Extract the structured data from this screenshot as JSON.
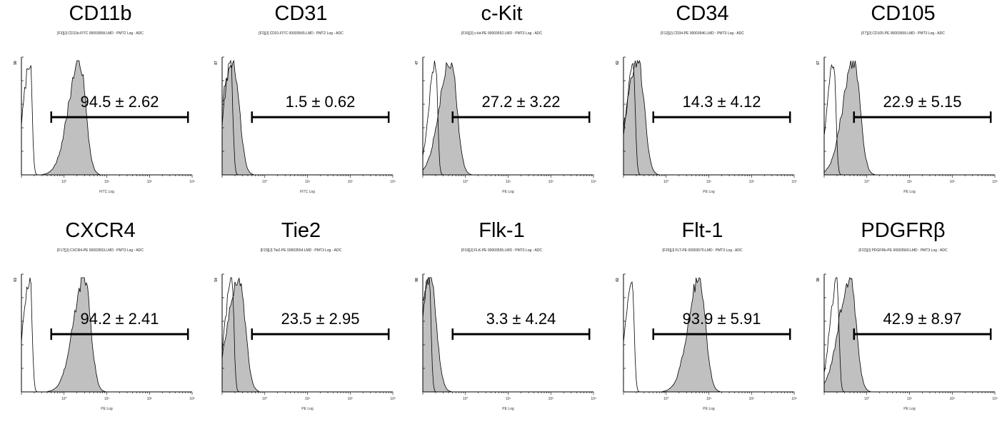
{
  "chart_data": [
    {
      "type": "histogram",
      "title": "CD11b",
      "file_label": "[F3][J] CD11b-FITC 00003558.LMD : PMT2 Log - ADC",
      "y_max": "56",
      "x_label": "FITC Log",
      "gate_value": "94.5 ± 2.62",
      "x_ticks": [
        "10°",
        "10¹",
        "10²",
        "10³"
      ],
      "x_range": [
        0.1,
        1000
      ],
      "gate_range": [
        0.5,
        800
      ],
      "control_peak": 0.16,
      "stained_peak": 2.3
    },
    {
      "type": "histogram",
      "title": "CD31",
      "file_label": "[F2][J] CD31-FITC 00003565.LMD : PMT2 Log - ADC",
      "y_max": "87",
      "x_label": "FITC Log",
      "gate_value": "1.5 ± 0.62",
      "x_ticks": [
        "10°",
        "10¹",
        "10²",
        "10³"
      ],
      "x_range": [
        0.1,
        1000
      ],
      "gate_range": [
        0.5,
        800
      ],
      "control_peak": 0.16,
      "stained_peak": 0.18
    },
    {
      "type": "histogram",
      "title": "c-Kit",
      "file_label": "[F16][J] c-kit-PE 00003552.LMD : PMT3 Log - ADC",
      "y_max": "47",
      "x_label": "PE Log",
      "gate_value": "27.2 ± 3.22",
      "x_ticks": [
        "10°",
        "10¹",
        "10²",
        "10³"
      ],
      "x_range": [
        0.1,
        1000
      ],
      "gate_range": [
        0.5,
        800
      ],
      "control_peak": 0.2,
      "stained_peak": 0.45
    },
    {
      "type": "histogram",
      "title": "CD34",
      "file_label": "[F12][J] CD34-PE 00003546.LMD : PMT3 Log - ADC",
      "y_max": "62",
      "x_label": "PE Log",
      "gate_value": "14.3 ± 4.12",
      "x_ticks": [
        "10°",
        "10¹",
        "10²",
        "10³"
      ],
      "x_range": [
        0.1,
        1000
      ],
      "gate_range": [
        0.5,
        800
      ],
      "control_peak": 0.17,
      "stained_peak": 0.22
    },
    {
      "type": "histogram",
      "title": "CD105",
      "file_label": "[F7][J] CD105-PE 00003559.LMD : PMT3 Log - ADC",
      "y_max": "67",
      "x_label": "PE Log",
      "gate_value": "22.9 ± 5.15",
      "x_ticks": [
        "10°",
        "10¹",
        "10²",
        "10³"
      ],
      "x_range": [
        0.1,
        1000
      ],
      "gate_range": [
        0.5,
        800
      ],
      "control_peak": 0.17,
      "stained_peak": 0.5
    },
    {
      "type": "histogram",
      "title": "CXCR4",
      "file_label": "[F17][J] CXCR4-PE 00003553.LMD : PMT3 Log - ADC",
      "y_max": "63",
      "x_label": "PE Log",
      "gate_value": "94.2 ± 2.41",
      "x_ticks": [
        "10°",
        "10¹",
        "10²",
        "10³"
      ],
      "x_range": [
        0.1,
        1000
      ],
      "gate_range": [
        0.5,
        800
      ],
      "control_peak": 0.16,
      "stained_peak": 3.0
    },
    {
      "type": "histogram",
      "title": "Tie2",
      "file_label": "[F23][J] Tie2-PE 00003554.LMD : PMT3 Log - ADC",
      "y_max": "54",
      "x_label": "PE Log",
      "gate_value": "23.5 ± 2.95",
      "x_ticks": [
        "10°",
        "10¹",
        "10²",
        "10³"
      ],
      "x_range": [
        0.1,
        1000
      ],
      "gate_range": [
        0.5,
        800
      ],
      "control_peak": 0.17,
      "stained_peak": 0.25
    },
    {
      "type": "histogram",
      "title": "Flk-1",
      "file_label": "[F19][J] FLK-PE 00003555.LMD : PMT3 Log - ADC",
      "y_max": "98",
      "x_label": "PE Log",
      "gate_value": "3.3 ± 4.24",
      "x_ticks": [
        "10°",
        "10¹",
        "10²",
        "10³"
      ],
      "x_range": [
        0.1,
        1000
      ],
      "gate_range": [
        0.5,
        800
      ],
      "control_peak": 0.14,
      "stained_peak": 0.15
    },
    {
      "type": "histogram",
      "title": "Flt-1",
      "file_label": "[F20][J] FLT-PE 00003570.LMD : PMT3 Log - ADC",
      "y_max": "62",
      "x_label": "PE Log",
      "gate_value": "93.9 ± 5.91",
      "x_ticks": [
        "10°",
        "10¹",
        "10²",
        "10³"
      ],
      "x_range": [
        0.1,
        1000
      ],
      "gate_range": [
        0.5,
        800
      ],
      "control_peak": 0.16,
      "stained_peak": 6.0
    },
    {
      "type": "histogram",
      "title": "PDGFRβ",
      "file_label": "[F22][J] PDGFRb-PE 00003560.LMD : PMT3 Log - ADC",
      "y_max": "38",
      "x_label": "PE Log",
      "gate_value": "42.9 ± 8.97",
      "x_ticks": [
        "10°",
        "10¹",
        "10²",
        "10³"
      ],
      "x_range": [
        0.1,
        1000
      ],
      "gate_range": [
        0.5,
        800
      ],
      "control_peak": 0.2,
      "stained_peak": 0.4
    }
  ],
  "colors": {
    "fill": "#c0c0c0",
    "line": "#000000",
    "background": "#ffffff"
  }
}
